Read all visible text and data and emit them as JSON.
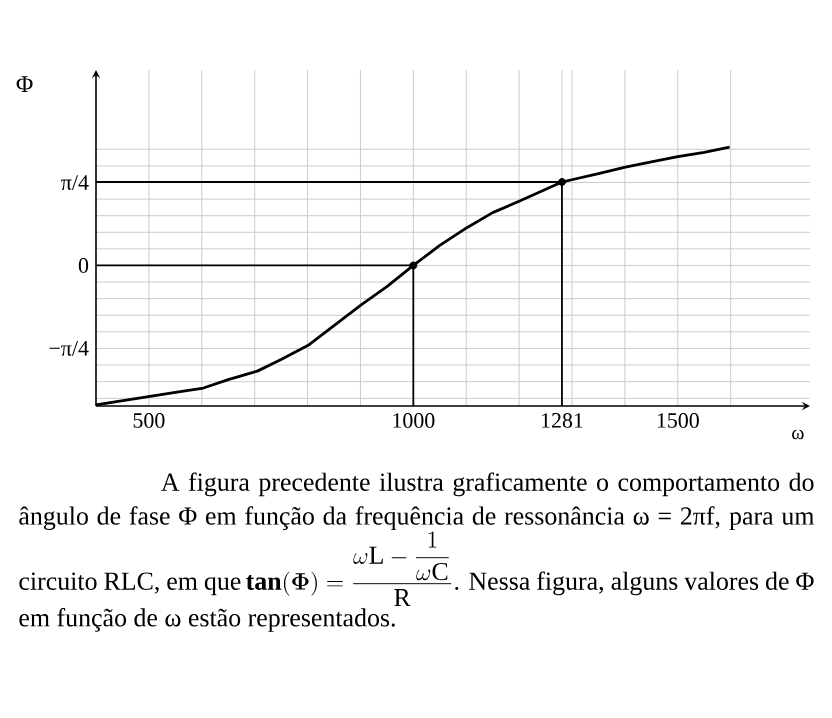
{
  "chart_data": {
    "type": "line",
    "ylabel": "Φ",
    "xlabel": "ω",
    "xlim": [
      400,
      1750
    ],
    "ylim": [
      -1.33,
      1.85
    ],
    "xticks": [
      500,
      {
        "value": 600,
        "label": null
      },
      {
        "value": 700,
        "label": null
      },
      {
        "value": 800,
        "label": null
      },
      {
        "value": 900,
        "label": null
      },
      1000,
      {
        "value": 1100,
        "label": null
      },
      {
        "value": 1200,
        "label": null
      },
      1281,
      {
        "value": 1300,
        "label": null
      },
      {
        "value": 1400,
        "label": null
      },
      1500,
      {
        "value": 1600,
        "label": null
      }
    ],
    "yticks": [
      {
        "value": -1.257,
        "label": null
      },
      {
        "value": -1.1,
        "label": null
      },
      {
        "value": -0.942,
        "label": null
      },
      {
        "value": -0.785,
        "label": "−π/4"
      },
      {
        "value": -0.628,
        "label": null
      },
      {
        "value": -0.471,
        "label": null
      },
      {
        "value": -0.314,
        "label": null
      },
      {
        "value": -0.157,
        "label": null
      },
      0,
      {
        "value": 0.157,
        "label": null
      },
      {
        "value": 0.314,
        "label": null
      },
      {
        "value": 0.471,
        "label": null
      },
      {
        "value": 0.628,
        "label": null
      },
      {
        "value": 0.785,
        "label": "π/4"
      },
      {
        "value": 0.942,
        "label": null
      },
      {
        "value": 1.1,
        "label": null
      }
    ],
    "grid": true,
    "series": [
      {
        "color": "#000000",
        "x": [
          400,
          450,
          500,
          550,
          603,
          650,
          705,
          750,
          803,
          850,
          902,
          950,
          1000,
          1050,
          1102,
          1150,
          1201,
          1281,
          1350,
          1401,
          1450,
          1500,
          1550,
          1598
        ],
        "values": [
          -1.32,
          -1.28,
          -1.24,
          -1.2,
          -1.16,
          -1.08,
          -1.0,
          -0.89,
          -0.75,
          -0.57,
          -0.37,
          -0.2,
          0,
          0.19,
          0.36,
          0.5,
          0.61,
          0.79,
          0.87,
          0.93,
          0.98,
          1.03,
          1.07,
          1.12
        ]
      },
      {
        "type": "line",
        "color": "#000000",
        "x": [
          400,
          1000,
          1000
        ],
        "values": [
          0,
          0,
          -1.33
        ]
      },
      {
        "type": "line",
        "color": "#000000",
        "x": [
          400,
          1281,
          1281
        ],
        "values": [
          0.79,
          0.79,
          -1.33
        ]
      },
      {
        "type": "scatter",
        "color": "#000000",
        "x": [
          1000,
          1281
        ],
        "values": [
          0,
          0.79
        ]
      }
    ],
    "annotations": [
      "A figura precedente ilustra graficamente o comportamento do ângulo de fase Φ em função da frequência de ressonância ω = 2πf, para um circuito RLC, em que",
      "\\mathbf{tan(}\\boldsymbol{\\Phi}\\mathbf{)} = \\dfrac{\\omega \\mathrm{L} - \\dfrac{1}{\\omega \\mathrm{C}}}{\\mathrm{R}}",
      ". Nessa figura, alguns valores de Φ em função de ω estão representados."
    ]
  }
}
